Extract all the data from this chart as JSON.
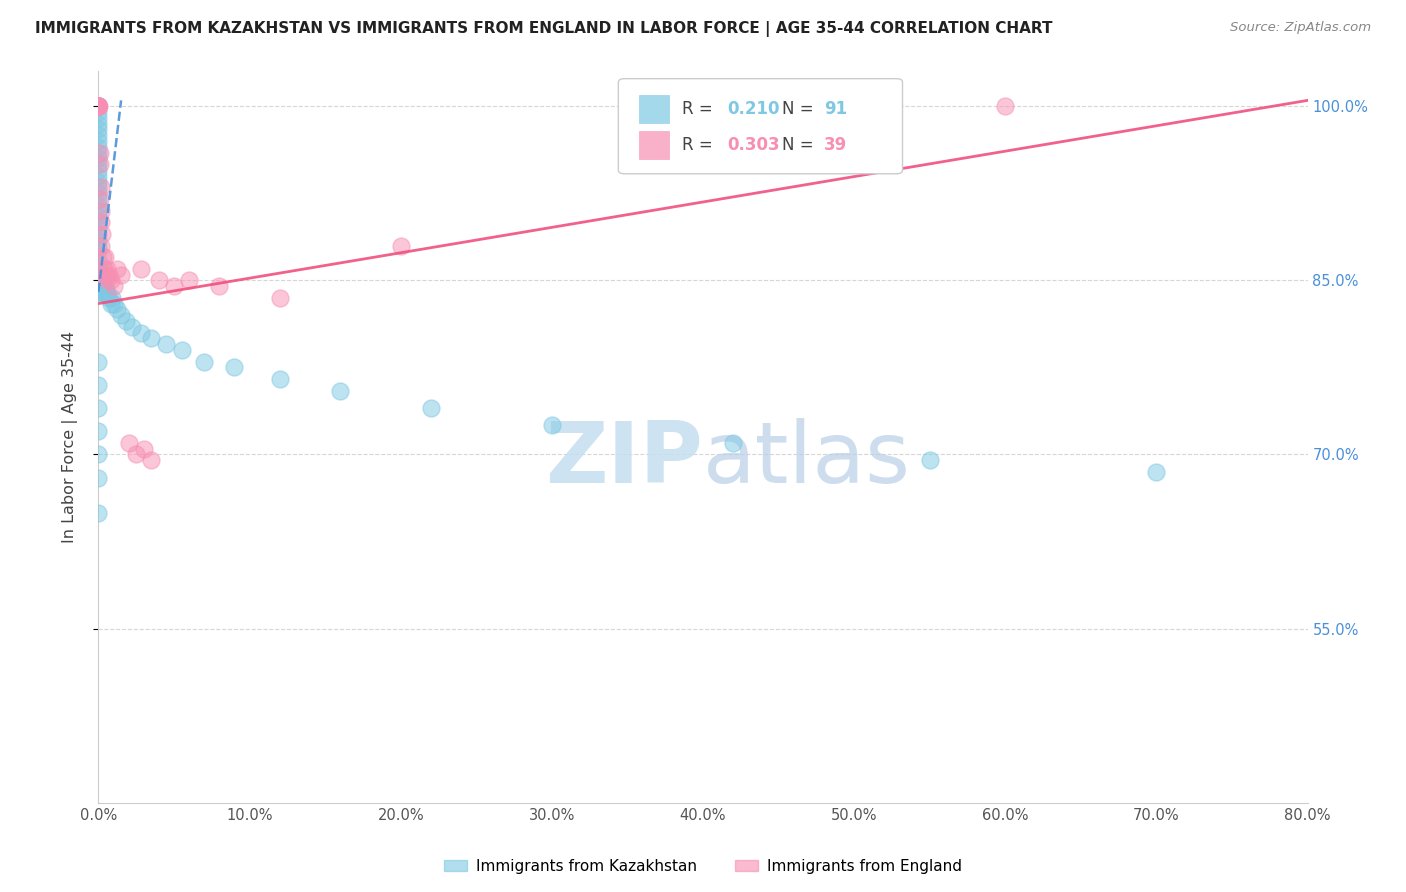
{
  "title": "IMMIGRANTS FROM KAZAKHSTAN VS IMMIGRANTS FROM ENGLAND IN LABOR FORCE | AGE 35-44 CORRELATION CHART",
  "source": "Source: ZipAtlas.com",
  "ylabel": "In Labor Force | Age 35-44",
  "legend_kaz": "Immigrants from Kazakhstan",
  "legend_eng": "Immigrants from England",
  "R_kaz": 0.21,
  "N_kaz": 91,
  "R_eng": 0.303,
  "N_eng": 39,
  "xmin": 0.0,
  "xmax": 80.0,
  "ymin": 40.0,
  "ymax": 103.0,
  "yticks": [
    55.0,
    70.0,
    85.0,
    100.0
  ],
  "xticks": [
    0.0,
    10.0,
    20.0,
    30.0,
    40.0,
    50.0,
    60.0,
    70.0,
    80.0
  ],
  "color_kaz": "#7ec8e3",
  "color_eng": "#f78fb3",
  "trendline_kaz_color": "#4a90d9",
  "trendline_eng_color": "#f05080",
  "background_color": "#ffffff",
  "grid_color": "#cccccc",
  "title_color": "#222222",
  "axis_label_color": "#444444",
  "right_axis_color": "#4a90d9",
  "kaz_x": [
    0.0,
    0.0,
    0.0,
    0.0,
    0.0,
    0.0,
    0.0,
    0.0,
    0.0,
    0.0,
    0.0,
    0.0,
    0.0,
    0.0,
    0.0,
    0.0,
    0.0,
    0.0,
    0.0,
    0.0,
    0.0,
    0.0,
    0.0,
    0.0,
    0.0,
    0.0,
    0.0,
    0.0,
    0.0,
    0.0,
    0.0,
    0.05,
    0.05,
    0.05,
    0.08,
    0.08,
    0.1,
    0.1,
    0.1,
    0.1,
    0.1,
    0.12,
    0.12,
    0.15,
    0.15,
    0.15,
    0.18,
    0.18,
    0.2,
    0.2,
    0.2,
    0.25,
    0.25,
    0.3,
    0.3,
    0.35,
    0.35,
    0.4,
    0.4,
    0.45,
    0.5,
    0.5,
    0.6,
    0.7,
    0.8,
    0.9,
    1.0,
    1.2,
    1.5,
    1.8,
    2.2,
    2.8,
    3.5,
    4.5,
    5.5,
    7.0,
    9.0,
    12.0,
    16.0,
    22.0,
    30.0,
    42.0,
    55.0,
    70.0,
    0.0,
    0.0,
    0.0,
    0.0,
    0.0,
    0.0,
    0.0
  ],
  "kaz_y": [
    100.0,
    100.0,
    100.0,
    100.0,
    100.0,
    100.0,
    99.5,
    99.0,
    98.5,
    98.0,
    97.5,
    97.0,
    96.5,
    96.0,
    95.5,
    95.0,
    94.5,
    94.0,
    93.5,
    93.0,
    92.5,
    92.0,
    91.5,
    91.0,
    90.5,
    90.0,
    89.5,
    89.0,
    88.5,
    88.0,
    87.5,
    86.5,
    86.0,
    85.5,
    85.0,
    85.5,
    85.2,
    84.8,
    84.5,
    84.2,
    84.0,
    85.0,
    84.5,
    84.8,
    84.5,
    84.2,
    84.5,
    84.0,
    84.8,
    84.5,
    84.0,
    84.5,
    84.0,
    84.5,
    84.0,
    84.5,
    84.0,
    84.5,
    84.0,
    84.0,
    84.2,
    83.8,
    84.0,
    83.5,
    83.0,
    83.5,
    83.0,
    82.5,
    82.0,
    81.5,
    81.0,
    80.5,
    80.0,
    79.5,
    79.0,
    78.0,
    77.5,
    76.5,
    75.5,
    74.0,
    72.5,
    71.0,
    69.5,
    68.5,
    78.0,
    76.0,
    74.0,
    72.0,
    70.0,
    68.0,
    65.0
  ],
  "eng_x": [
    0.0,
    0.0,
    0.0,
    0.0,
    0.0,
    0.0,
    0.05,
    0.08,
    0.1,
    0.12,
    0.15,
    0.18,
    0.2,
    0.2,
    0.25,
    0.3,
    0.35,
    0.4,
    0.45,
    0.5,
    0.55,
    0.6,
    0.7,
    0.8,
    1.0,
    1.2,
    1.5,
    2.0,
    2.5,
    3.0,
    3.5,
    4.0,
    5.0,
    6.0,
    8.0,
    12.0,
    20.0,
    2.8,
    60.0
  ],
  "eng_y": [
    100.0,
    100.0,
    100.0,
    100.0,
    100.0,
    100.0,
    100.0,
    96.0,
    92.0,
    95.0,
    90.0,
    93.0,
    91.0,
    88.0,
    89.0,
    87.0,
    86.0,
    85.5,
    87.0,
    85.5,
    86.0,
    85.0,
    85.5,
    85.0,
    84.5,
    86.0,
    85.5,
    71.0,
    70.0,
    70.5,
    69.5,
    85.0,
    84.5,
    85.0,
    84.5,
    83.5,
    88.0,
    86.0,
    100.0
  ],
  "kaz_trend_x0": 0.0,
  "kaz_trend_y0": 84.0,
  "kaz_trend_x1": 1.5,
  "kaz_trend_y1": 100.5,
  "eng_trend_x0": 0.0,
  "eng_trend_y0": 83.0,
  "eng_trend_x1": 80.0,
  "eng_trend_y1": 100.5,
  "watermark_color": "#c5dff0",
  "watermark_color2": "#b8cfe8"
}
